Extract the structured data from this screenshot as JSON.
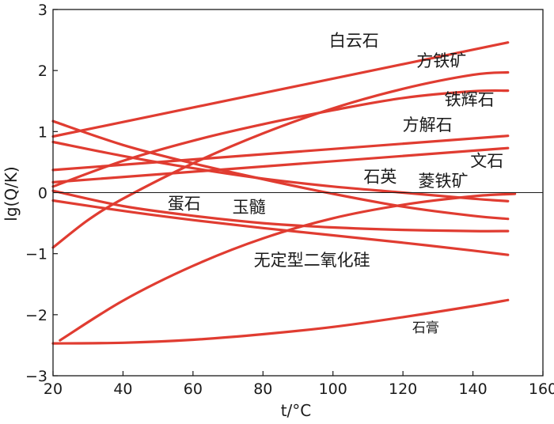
{
  "chart_data": {
    "type": "line",
    "xlabel": "t/°C",
    "ylabel": "lg(Q/K)",
    "xlim": [
      20,
      160
    ],
    "ylim": [
      -3,
      3
    ],
    "x_ticks": [
      "20",
      "40",
      "60",
      "80",
      "100",
      "120",
      "140",
      "160"
    ],
    "y_ticks": [
      "−3",
      "−2",
      "−1",
      "0",
      "1",
      "2",
      "3"
    ],
    "zero_line": true,
    "grid": false,
    "line_color": "#e03c31",
    "series": [
      {
        "name": "白云石",
        "x": [
          20,
          150
        ],
        "y": [
          0.92,
          2.46
        ],
        "curve": "linear"
      },
      {
        "name": "方铁矿",
        "x": [
          20,
          30,
          40,
          60,
          80,
          100,
          120,
          140,
          150
        ],
        "y": [
          -0.9,
          -0.45,
          -0.1,
          0.48,
          0.97,
          1.38,
          1.7,
          1.93,
          1.97
        ],
        "curve": "smooth"
      },
      {
        "name": "铁辉石",
        "x": [
          20,
          40,
          60,
          80,
          100,
          120,
          140,
          150
        ],
        "y": [
          0.1,
          0.52,
          0.85,
          1.12,
          1.35,
          1.55,
          1.66,
          1.67
        ],
        "curve": "smooth"
      },
      {
        "name": "方解石",
        "x": [
          20,
          150
        ],
        "y": [
          0.37,
          0.93
        ],
        "curve": "linear"
      },
      {
        "name": "文石",
        "x": [
          20,
          150
        ],
        "y": [
          0.17,
          0.73
        ],
        "curve": "linear"
      },
      {
        "name": "石英",
        "x": [
          20,
          40,
          60,
          80,
          100,
          120,
          140,
          150
        ],
        "y": [
          1.17,
          0.78,
          0.48,
          0.22,
          -0.02,
          -0.23,
          -0.38,
          -0.43
        ],
        "curve": "smooth"
      },
      {
        "name": "菱铁矿",
        "x": [
          20,
          40,
          60,
          80,
          100,
          120,
          140,
          150
        ],
        "y": [
          0.83,
          0.6,
          0.4,
          0.23,
          0.1,
          0.0,
          -0.1,
          -0.14
        ],
        "curve": "smooth"
      },
      {
        "name": "蛋石",
        "x": [
          20,
          40,
          60,
          80,
          100,
          120,
          140,
          150
        ],
        "y": [
          -0.13,
          -0.3,
          -0.45,
          -0.58,
          -0.7,
          -0.82,
          -0.95,
          -1.02
        ],
        "curve": "smooth"
      },
      {
        "name": "玉髓",
        "x": [
          20,
          40,
          60,
          80,
          100,
          120,
          140,
          150
        ],
        "y": [
          0.03,
          -0.22,
          -0.38,
          -0.5,
          -0.57,
          -0.61,
          -0.63,
          -0.63
        ],
        "curve": "smooth"
      },
      {
        "name": "无定型二氧化硅",
        "x": [
          22,
          40,
          60,
          80,
          100,
          120,
          140,
          152
        ],
        "y": [
          -2.42,
          -1.77,
          -1.2,
          -0.75,
          -0.42,
          -0.2,
          -0.06,
          -0.02
        ],
        "curve": "smooth"
      },
      {
        "name": "石膏",
        "x": [
          20,
          40,
          60,
          80,
          100,
          120,
          140,
          150
        ],
        "y": [
          -2.47,
          -2.46,
          -2.41,
          -2.32,
          -2.2,
          -2.04,
          -1.86,
          -1.76
        ],
        "curve": "smooth"
      }
    ],
    "labels": [
      {
        "text": "白云石",
        "x": 106,
        "y": 2.4,
        "size": "normal"
      },
      {
        "text": "方铁矿",
        "x": 131,
        "y": 2.07,
        "size": "normal"
      },
      {
        "text": "铁辉石",
        "x": 139,
        "y": 1.43,
        "size": "normal"
      },
      {
        "text": "方解石",
        "x": 127,
        "y": 1.02,
        "size": "normal"
      },
      {
        "text": "文石",
        "x": 144,
        "y": 0.43,
        "size": "normal"
      },
      {
        "text": "石英",
        "x": 113.5,
        "y": 0.17,
        "size": "normal"
      },
      {
        "text": "菱铁矿",
        "x": 131.5,
        "y": 0.1,
        "size": "normal"
      },
      {
        "text": "蛋石",
        "x": 57.5,
        "y": -0.27,
        "size": "normal"
      },
      {
        "text": "玉髓",
        "x": 76,
        "y": -0.33,
        "size": "normal"
      },
      {
        "text": "无定型二氧化硅",
        "x": 94,
        "y": -1.2,
        "size": "normal"
      },
      {
        "text": "石膏",
        "x": 126.5,
        "y": -2.29,
        "size": "small"
      }
    ]
  }
}
